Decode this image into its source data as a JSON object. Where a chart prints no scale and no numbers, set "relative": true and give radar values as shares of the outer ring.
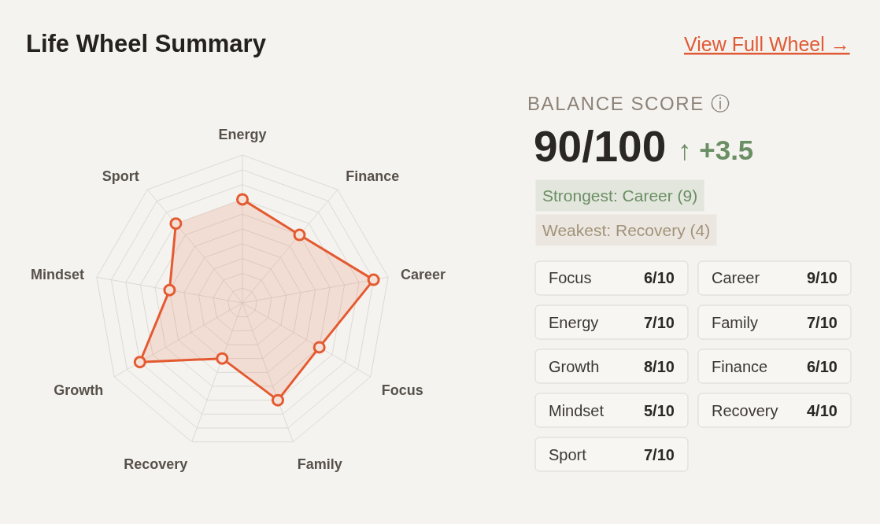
{
  "chart_data": [
    {
      "type": "radar",
      "title": "Life Wheel Summary",
      "categories": [
        "Energy",
        "Finance",
        "Career",
        "Focus",
        "Family",
        "Recovery",
        "Growth",
        "Mindset",
        "Sport"
      ],
      "relative": true,
      "grid": true,
      "marker": "circle",
      "line_style": "solid",
      "series": [
        {
          "color": "#e45a30",
          "values": [
            0.7,
            0.6,
            0.9,
            0.6,
            0.7,
            0.4,
            0.8,
            0.5,
            0.7
          ]
        }
      ]
    },
    {
      "type": "other",
      "title": "BALANCE SCORE ⓘ",
      "annotations": [
        "View Full Wheel →",
        "90/100",
        "↑ +3.5",
        "Strongest: Career (9)",
        "Weakest: Recovery (4)",
        "Focus",
        "6/10",
        "Career",
        "9/10",
        "Energy",
        "7/10",
        "Family",
        "7/10",
        "Growth",
        "8/10",
        "Finance",
        "6/10",
        "Mindset",
        "5/10",
        "Recovery",
        "4/10",
        "Sport",
        "7/10"
      ]
    }
  ]
}
